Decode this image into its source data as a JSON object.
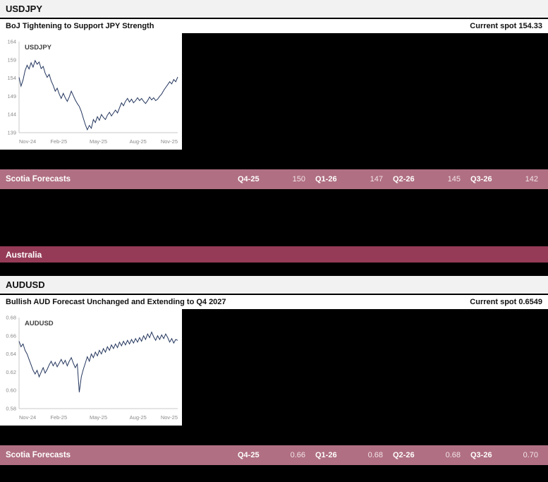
{
  "colors": {
    "page_bg": "#000000",
    "section_header_bg": "#f2f2f2",
    "subtitle_bg": "#ffffff",
    "forecast_bar_bg": "#b06f82",
    "country_bar_bg": "#953b57",
    "chart_line": "#24365e",
    "axis_text": "#8a8a8a",
    "axis_line": "#c8c8c8"
  },
  "sections": [
    {
      "pair": "USDJPY",
      "headline": "BoJ Tightening to Support JPY Strength",
      "current_spot_label": "Current spot 154.33",
      "forecasts": {
        "label": "Scotia Forecasts",
        "entries": [
          {
            "quarter": "Q4-25",
            "value": "150"
          },
          {
            "quarter": "Q1-26",
            "value": "147"
          },
          {
            "quarter": "Q2-26",
            "value": "145"
          },
          {
            "quarter": "Q3-26",
            "value": "142"
          }
        ]
      }
    },
    {
      "pair": "AUDUSD",
      "headline": "Bullish AUD Forecast Unchanged and Extending to Q4 2027",
      "current_spot_label": "Current spot 0.6549",
      "forecasts": {
        "label": "Scotia Forecasts",
        "entries": [
          {
            "quarter": "Q4-25",
            "value": "0.66"
          },
          {
            "quarter": "Q1-26",
            "value": "0.68"
          },
          {
            "quarter": "Q2-26",
            "value": "0.68"
          },
          {
            "quarter": "Q3-26",
            "value": "0.70"
          }
        ]
      }
    }
  ],
  "country_header": {
    "label": "Australia"
  },
  "chart_data": [
    {
      "type": "line",
      "title": "USDJPY",
      "xlabel": "",
      "ylabel": "",
      "grid": false,
      "legend": "none",
      "ylim": [
        139,
        164
      ],
      "y_ticks": [
        164,
        159,
        154,
        149,
        144,
        139
      ],
      "y_tick_labels": [
        "164",
        "159",
        "154",
        "149",
        "144",
        "139"
      ],
      "x_tick_labels": [
        "Nov-24",
        "Feb-25",
        "May-25",
        "Aug-25",
        "Nov-25"
      ],
      "series": [
        {
          "name": "USDJPY",
          "values": [
            154.2,
            151.8,
            153.5,
            156.0,
            157.5,
            156.5,
            158.2,
            157.0,
            158.8,
            157.8,
            158.4,
            156.6,
            157.2,
            155.4,
            154.2,
            155.0,
            153.2,
            152.0,
            150.4,
            151.2,
            149.6,
            148.4,
            149.8,
            148.6,
            147.6,
            148.8,
            150.4,
            149.2,
            148.0,
            147.0,
            146.2,
            144.8,
            143.0,
            141.2,
            139.8,
            141.0,
            140.2,
            142.6,
            141.8,
            143.4,
            142.4,
            144.0,
            143.2,
            142.6,
            143.8,
            144.6,
            143.6,
            144.4,
            145.2,
            144.4,
            145.8,
            147.2,
            146.4,
            147.6,
            148.4,
            147.4,
            148.2,
            147.2,
            147.8,
            148.6,
            147.8,
            148.4,
            147.6,
            147.0,
            147.8,
            148.8,
            148.0,
            148.6,
            147.8,
            148.2,
            149.0,
            149.6,
            150.6,
            151.4,
            152.2,
            153.0,
            152.4,
            153.6,
            153.0,
            154.3
          ]
        }
      ]
    },
    {
      "type": "line",
      "title": "AUDUSD",
      "xlabel": "",
      "ylabel": "",
      "grid": false,
      "legend": "none",
      "ylim": [
        0.58,
        0.68
      ],
      "y_ticks": [
        0.68,
        0.66,
        0.64,
        0.62,
        0.6,
        0.58
      ],
      "y_tick_labels": [
        "0.68",
        "0.66",
        "0.64",
        "0.62",
        "0.60",
        "0.58"
      ],
      "x_tick_labels": [
        "Nov-24",
        "Feb-25",
        "May-25",
        "Aug-25",
        "Nov-25"
      ],
      "series": [
        {
          "name": "AUDUSD",
          "values": [
            0.654,
            0.648,
            0.651,
            0.644,
            0.64,
            0.634,
            0.628,
            0.622,
            0.618,
            0.622,
            0.615,
            0.62,
            0.625,
            0.619,
            0.623,
            0.628,
            0.632,
            0.627,
            0.631,
            0.626,
            0.63,
            0.634,
            0.629,
            0.633,
            0.627,
            0.632,
            0.636,
            0.63,
            0.625,
            0.629,
            0.598,
            0.615,
            0.623,
            0.63,
            0.637,
            0.632,
            0.64,
            0.636,
            0.642,
            0.638,
            0.644,
            0.64,
            0.646,
            0.642,
            0.648,
            0.644,
            0.65,
            0.646,
            0.651,
            0.647,
            0.653,
            0.649,
            0.654,
            0.65,
            0.655,
            0.651,
            0.656,
            0.652,
            0.657,
            0.653,
            0.658,
            0.654,
            0.66,
            0.656,
            0.662,
            0.658,
            0.664,
            0.659,
            0.655,
            0.66,
            0.656,
            0.661,
            0.657,
            0.662,
            0.658,
            0.653,
            0.657,
            0.652,
            0.656,
            0.655
          ]
        }
      ]
    }
  ]
}
